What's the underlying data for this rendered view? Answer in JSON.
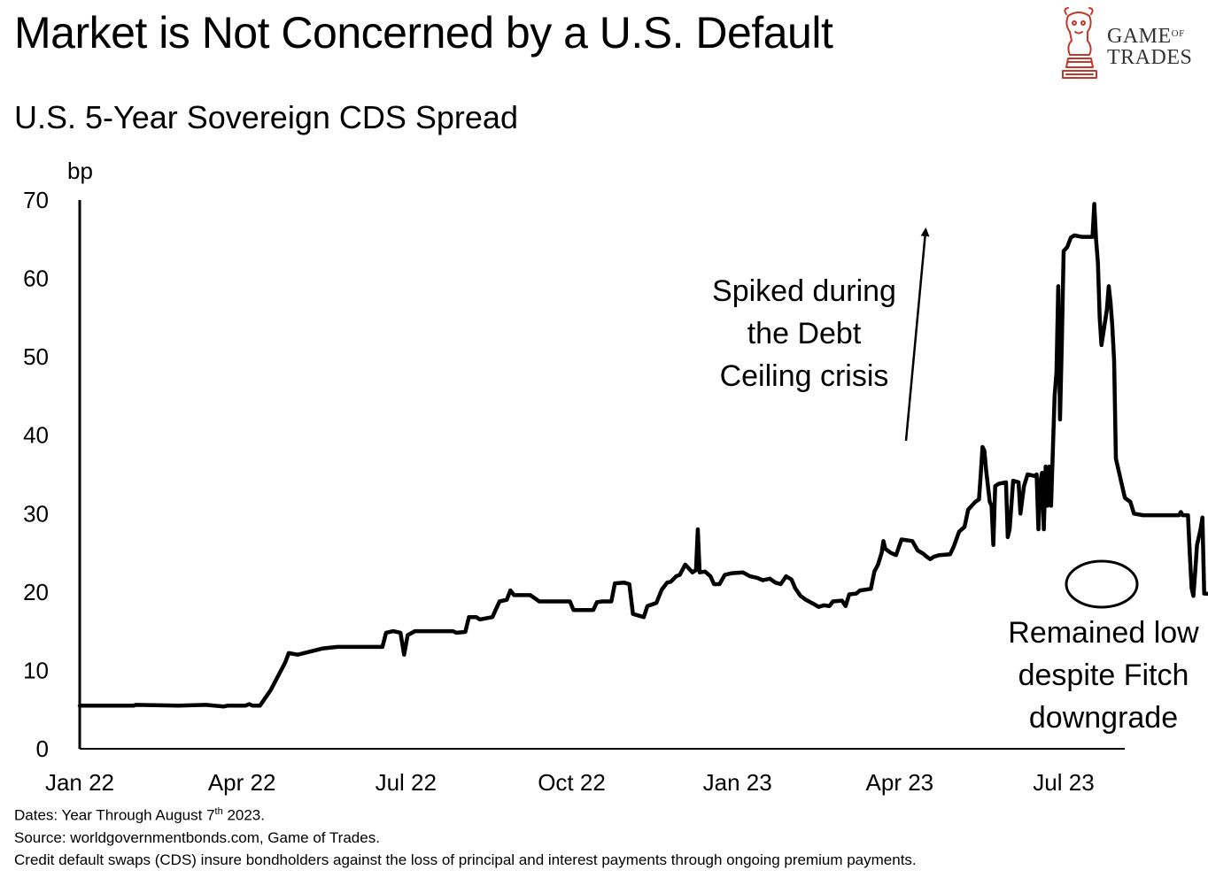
{
  "header": {
    "title": "Market is Not Concerned by a U.S. Default",
    "subtitle": "U.S. 5-Year Sovereign CDS Spread"
  },
  "logo": {
    "line1_main": "Game",
    "line1_small": "of",
    "line2": "Trades",
    "color": "#c0392b"
  },
  "footnotes": {
    "dates_prefix": "Dates: Year Through August 7",
    "dates_sup": "th",
    "dates_suffix": " 2023.",
    "source": "Source: worldgovernmentbonds.com, Game of Trades.",
    "note": "Credit default swaps (CDS) insure bondholders against the loss of principal and interest payments through ongoing premium payments."
  },
  "chart_data": {
    "type": "line",
    "title": "U.S. 5-Year Sovereign CDS Spread",
    "ylabel": "bp",
    "ylim": [
      0,
      70
    ],
    "yticks": [
      "0",
      "10",
      "20",
      "30",
      "40",
      "50",
      "60",
      "70"
    ],
    "xticks": [
      "Jan 22",
      "Apr 22",
      "Jul 22",
      "Oct 22",
      "Jan 23",
      "Apr 23",
      "Jul 23"
    ],
    "grid": false,
    "line_color": "#000000",
    "annotations": [
      {
        "text_lines": [
          "Spiked during",
          "the Debt",
          "Ceiling crisis"
        ],
        "arrow": "up"
      },
      {
        "text_lines": [
          "Remained low",
          "despite Fitch",
          "downgrade"
        ],
        "circled_region": "Jul 23 - Aug 23"
      }
    ],
    "series": [
      {
        "values": [
          [
            0,
            5.5
          ],
          [
            30,
            5.5
          ],
          [
            31,
            5.6
          ],
          [
            55,
            5.5
          ],
          [
            70,
            5.6
          ],
          [
            80,
            5.4
          ],
          [
            82,
            5.5
          ],
          [
            92,
            5.5
          ],
          [
            94,
            5.7
          ],
          [
            96,
            5.5
          ],
          [
            100,
            5.5
          ],
          [
            106,
            7.5
          ],
          [
            114,
            11
          ],
          [
            116,
            12.2
          ],
          [
            121,
            12
          ],
          [
            135,
            12.8
          ],
          [
            143,
            13.0
          ],
          [
            168,
            13.0
          ],
          [
            170,
            14.8
          ],
          [
            174,
            15.0
          ],
          [
            178,
            14.8
          ],
          [
            180,
            12.0
          ],
          [
            182,
            14.5
          ],
          [
            186,
            15.0
          ],
          [
            207,
            15.0
          ],
          [
            209,
            14.8
          ],
          [
            214,
            14.9
          ],
          [
            216,
            16.8
          ],
          [
            220,
            16.8
          ],
          [
            222,
            16.5
          ],
          [
            229,
            16.8
          ],
          [
            231,
            17.8
          ],
          [
            233,
            18.8
          ],
          [
            237,
            19
          ],
          [
            239,
            20.2
          ],
          [
            241,
            19.6
          ],
          [
            248,
            19.6
          ],
          [
            250,
            19.6
          ],
          [
            255,
            18.8
          ],
          [
            272,
            18.8
          ],
          [
            274,
            17.7
          ],
          [
            285,
            17.7
          ],
          [
            287,
            18.7
          ],
          [
            290,
            18.8
          ],
          [
            295,
            18.8
          ],
          [
            297,
            21.1
          ],
          [
            302,
            21.2
          ],
          [
            305,
            21.0
          ],
          [
            307,
            17.2
          ],
          [
            310,
            17.0
          ],
          [
            313,
            16.8
          ],
          [
            315,
            18.2
          ],
          [
            320,
            18.6
          ],
          [
            323,
            20.3
          ],
          [
            326,
            21.2
          ],
          [
            328,
            21.3
          ],
          [
            331,
            22.0
          ],
          [
            333,
            22.2
          ],
          [
            336,
            23.5
          ],
          [
            338,
            23.0
          ],
          [
            340,
            22.5
          ],
          [
            342,
            22.8
          ],
          [
            343,
            28.0
          ],
          [
            344,
            22.5
          ],
          [
            347,
            22.6
          ],
          [
            350,
            22.0
          ],
          [
            352,
            21.0
          ],
          [
            355,
            21.0
          ],
          [
            358,
            22.2
          ],
          [
            362,
            22.4
          ],
          [
            368,
            22.5
          ],
          [
            372,
            22.0
          ],
          [
            376,
            21.8
          ],
          [
            379,
            21.5
          ],
          [
            383,
            21.7
          ],
          [
            386,
            21.2
          ],
          [
            389,
            21.0
          ],
          [
            392,
            22.0
          ],
          [
            395,
            21.6
          ],
          [
            397,
            20.5
          ],
          [
            400,
            19.5
          ],
          [
            403,
            19.0
          ],
          [
            407,
            18.5
          ],
          [
            410,
            18.1
          ],
          [
            413,
            18.3
          ],
          [
            416,
            18.2
          ],
          [
            418,
            18.8
          ],
          [
            423,
            18.9
          ],
          [
            425,
            18.2
          ],
          [
            427,
            19.7
          ],
          [
            431,
            19.8
          ],
          [
            433,
            20.2
          ],
          [
            439,
            20.4
          ],
          [
            441,
            22.6
          ],
          [
            443,
            23.5
          ],
          [
            445,
            25.0
          ],
          [
            446,
            26.5
          ],
          [
            447,
            25.5
          ],
          [
            450,
            25.0
          ],
          [
            453,
            24.7
          ],
          [
            456,
            26.7
          ],
          [
            462,
            26.5
          ],
          [
            465,
            25.3
          ],
          [
            468,
            24.9
          ],
          [
            470,
            24.5
          ],
          [
            472,
            24.2
          ],
          [
            474,
            24.5
          ],
          [
            477,
            24.7
          ],
          [
            483,
            24.8
          ],
          [
            485,
            25.8
          ],
          [
            488,
            27.7
          ],
          [
            491,
            28.3
          ],
          [
            493,
            30.5
          ],
          [
            497,
            31.5
          ],
          [
            499,
            31.8
          ],
          [
            500,
            35.0
          ],
          [
            501,
            38.5
          ],
          [
            502,
            38.0
          ],
          [
            503,
            35.5
          ],
          [
            505,
            31.5
          ],
          [
            506,
            31.0
          ],
          [
            507,
            26.0
          ],
          [
            508,
            33.5
          ],
          [
            510,
            33.8
          ],
          [
            514,
            34.0
          ],
          [
            515,
            27.0
          ],
          [
            516,
            28.0
          ],
          [
            518,
            34.2
          ],
          [
            521,
            34.0
          ],
          [
            522,
            30.0
          ],
          [
            524,
            33.5
          ],
          [
            526,
            35.0
          ],
          [
            530,
            34.8
          ],
          [
            531,
            35.0
          ],
          [
            532,
            28.0
          ],
          [
            533,
            34.0
          ],
          [
            534,
            35.2
          ],
          [
            535,
            28.0
          ],
          [
            536,
            36.0
          ],
          [
            537,
            31.0
          ],
          [
            538,
            36.0
          ],
          [
            539,
            31.0
          ],
          [
            540,
            38.0
          ],
          [
            541,
            45.0
          ],
          [
            542,
            48.0
          ],
          [
            543,
            59.0
          ],
          [
            544,
            42.0
          ],
          [
            545,
            52.0
          ],
          [
            546,
            63.5
          ],
          [
            548,
            64.0
          ],
          [
            550,
            65.2
          ],
          [
            552,
            65.5
          ],
          [
            556,
            65.3
          ],
          [
            562,
            65.3
          ],
          [
            563,
            69.5
          ],
          [
            564,
            65.0
          ],
          [
            565,
            62.0
          ],
          [
            566,
            55.0
          ],
          [
            567,
            51.5
          ],
          [
            570,
            56.0
          ],
          [
            571,
            59.0
          ],
          [
            572,
            57.0
          ],
          [
            573,
            54.0
          ],
          [
            574,
            49.5
          ],
          [
            575,
            37.0
          ],
          [
            577,
            35.0
          ],
          [
            578,
            34.0
          ],
          [
            580,
            32.0
          ],
          [
            583,
            31.5
          ],
          [
            585,
            30.0
          ],
          [
            590,
            29.8
          ],
          [
            610,
            29.8
          ],
          [
            611,
            30.2
          ],
          [
            612,
            29.8
          ],
          [
            615,
            29.8
          ],
          [
            616,
            25.0
          ],
          [
            617,
            20.5
          ],
          [
            618,
            19.5
          ],
          [
            619,
            22.5
          ],
          [
            620,
            26.0
          ],
          [
            622,
            28.0
          ],
          [
            623,
            29.5
          ],
          [
            624,
            19.8
          ],
          [
            631,
            19.7
          ],
          [
            634,
            20.2
          ],
          [
            637,
            20.2
          ],
          [
            640,
            20.1
          ]
        ]
      }
    ]
  }
}
